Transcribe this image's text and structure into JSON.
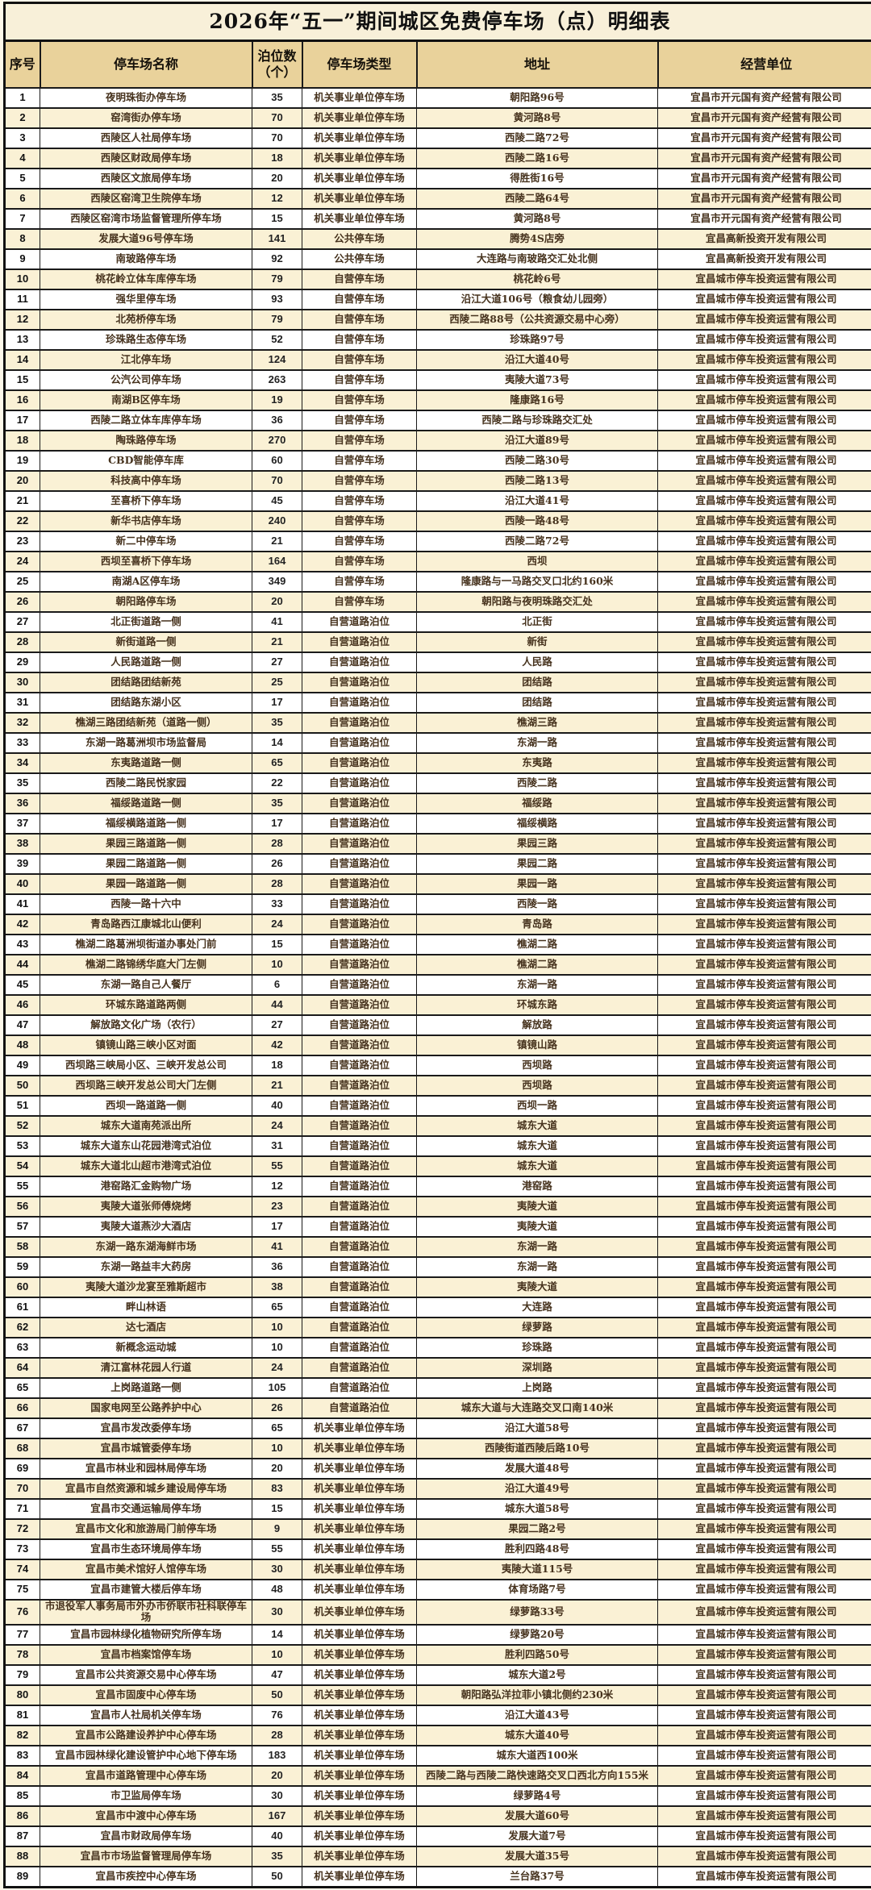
{
  "title": "2026年“五一”期间城区免费停车场（点）明细表",
  "table": {
    "headers": [
      "序号",
      "停车场名称",
      "泊位数（个）",
      "停车场类型",
      "地址",
      "经营单位"
    ],
    "rows": [
      [
        "1",
        "夜明珠街办停车场",
        "35",
        "机关事业单位停车场",
        "朝阳路96号",
        "宜昌市开元国有资产经营有限公司"
      ],
      [
        "2",
        "窑湾街办停车场",
        "70",
        "机关事业单位停车场",
        "黄河路8号",
        "宜昌市开元国有资产经营有限公司"
      ],
      [
        "3",
        "西陵区人社局停车场",
        "70",
        "机关事业单位停车场",
        "西陵二路72号",
        "宜昌市开元国有资产经营有限公司"
      ],
      [
        "4",
        "西陵区财政局停车场",
        "18",
        "机关事业单位停车场",
        "西陵二路16号",
        "宜昌市开元国有资产经营有限公司"
      ],
      [
        "5",
        "西陵区文旅局停车场",
        "20",
        "机关事业单位停车场",
        "得胜街16号",
        "宜昌市开元国有资产经营有限公司"
      ],
      [
        "6",
        "西陵区窑湾卫生院停车场",
        "12",
        "机关事业单位停车场",
        "西陵二路64号",
        "宜昌市开元国有资产经营有限公司"
      ],
      [
        "7",
        "西陵区窑湾市场监督管理所停车场",
        "15",
        "机关事业单位停车场",
        "黄河路8号",
        "宜昌市开元国有资产经营有限公司"
      ],
      [
        "8",
        "发展大道96号停车场",
        "141",
        "公共停车场",
        "腾势4S店旁",
        "宜昌高新投资开发有限公司"
      ],
      [
        "9",
        "南玻路停车场",
        "92",
        "公共停车场",
        "大连路与南玻路交汇处北侧",
        "宜昌高新投资开发有限公司"
      ],
      [
        "10",
        "桃花岭立体车库停车场",
        "79",
        "自营停车场",
        "桃花岭6号",
        "宜昌城市停车投资运营有限公司"
      ],
      [
        "11",
        "强华里停车场",
        "93",
        "自营停车场",
        "沿江大道106号（粮食幼儿园旁）",
        "宜昌城市停车投资运营有限公司"
      ],
      [
        "12",
        "北苑桥停车场",
        "79",
        "自营停车场",
        "西陵二路88号（公共资源交易中心旁）",
        "宜昌城市停车投资运营有限公司"
      ],
      [
        "13",
        "珍珠路生态停车场",
        "52",
        "自营停车场",
        "珍珠路97号",
        "宜昌城市停车投资运营有限公司"
      ],
      [
        "14",
        "江北停车场",
        "124",
        "自营停车场",
        "沿江大道40号",
        "宜昌城市停车投资运营有限公司"
      ],
      [
        "15",
        "公汽公司停车场",
        "263",
        "自营停车场",
        "夷陵大道73号",
        "宜昌城市停车投资运营有限公司"
      ],
      [
        "16",
        "南湖B区停车场",
        "19",
        "自营停车场",
        "隆康路16号",
        "宜昌城市停车投资运营有限公司"
      ],
      [
        "17",
        "西陵二路立体车库停车场",
        "36",
        "自营停车场",
        "西陵二路与珍珠路交汇处",
        "宜昌城市停车投资运营有限公司"
      ],
      [
        "18",
        "陶珠路停车场",
        "270",
        "自营停车场",
        "沿江大道89号",
        "宜昌城市停车投资运营有限公司"
      ],
      [
        "19",
        "CBD智能停车库",
        "60",
        "自营停车场",
        "西陵二路30号",
        "宜昌城市停车投资运营有限公司"
      ],
      [
        "20",
        "科技高中停车场",
        "70",
        "自营停车场",
        "西陵二路13号",
        "宜昌城市停车投资运营有限公司"
      ],
      [
        "21",
        "至喜桥下停车场",
        "45",
        "自营停车场",
        "沿江大道41号",
        "宜昌城市停车投资运营有限公司"
      ],
      [
        "22",
        "新华书店停车场",
        "240",
        "自营停车场",
        "西陵一路48号",
        "宜昌城市停车投资运营有限公司"
      ],
      [
        "23",
        "新二中停车场",
        "21",
        "自营停车场",
        "西陵二路72号",
        "宜昌城市停车投资运营有限公司"
      ],
      [
        "24",
        "西坝至喜桥下停车场",
        "164",
        "自营停车场",
        "西坝",
        "宜昌城市停车投资运营有限公司"
      ],
      [
        "25",
        "南湖A区停车场",
        "349",
        "自营停车场",
        "隆康路与一马路交叉口北约160米",
        "宜昌城市停车投资运营有限公司"
      ],
      [
        "26",
        "朝阳路停车场",
        "20",
        "自营停车场",
        "朝阳路与夜明珠路交汇处",
        "宜昌城市停车投资运营有限公司"
      ],
      [
        "27",
        "北正街道路一侧",
        "41",
        "自营道路泊位",
        "北正街",
        "宜昌城市停车投资运营有限公司"
      ],
      [
        "28",
        "新街道路一侧",
        "21",
        "自营道路泊位",
        "新街",
        "宜昌城市停车投资运营有限公司"
      ],
      [
        "29",
        "人民路道路一侧",
        "27",
        "自营道路泊位",
        "人民路",
        "宜昌城市停车投资运营有限公司"
      ],
      [
        "30",
        "团结路团结新苑",
        "25",
        "自营道路泊位",
        "团结路",
        "宜昌城市停车投资运营有限公司"
      ],
      [
        "31",
        "团结路东湖小区",
        "17",
        "自营道路泊位",
        "团结路",
        "宜昌城市停车投资运营有限公司"
      ],
      [
        "32",
        "樵湖三路团结新苑（道路一侧）",
        "35",
        "自营道路泊位",
        "樵湖三路",
        "宜昌城市停车投资运营有限公司"
      ],
      [
        "33",
        "东湖一路葛洲坝市场监督局",
        "14",
        "自营道路泊位",
        "东湖一路",
        "宜昌城市停车投资运营有限公司"
      ],
      [
        "34",
        "东夷路道路一侧",
        "65",
        "自营道路泊位",
        "东夷路",
        "宜昌城市停车投资运营有限公司"
      ],
      [
        "35",
        "西陵二路民悦家园",
        "22",
        "自营道路泊位",
        "西陵二路",
        "宜昌城市停车投资运营有限公司"
      ],
      [
        "36",
        "福绥路道路一侧",
        "35",
        "自营道路泊位",
        "福绥路",
        "宜昌城市停车投资运营有限公司"
      ],
      [
        "37",
        "福绥横路道路一侧",
        "17",
        "自营道路泊位",
        "福绥横路",
        "宜昌城市停车投资运营有限公司"
      ],
      [
        "38",
        "果园三路道路一侧",
        "28",
        "自营道路泊位",
        "果园三路",
        "宜昌城市停车投资运营有限公司"
      ],
      [
        "39",
        "果园二路道路一侧",
        "26",
        "自营道路泊位",
        "果园二路",
        "宜昌城市停车投资运营有限公司"
      ],
      [
        "40",
        "果园一路道路一侧",
        "28",
        "自营道路泊位",
        "果园一路",
        "宜昌城市停车投资运营有限公司"
      ],
      [
        "41",
        "西陵一路十六中",
        "33",
        "自营道路泊位",
        "西陵一路",
        "宜昌城市停车投资运营有限公司"
      ],
      [
        "42",
        "青岛路西江康城北山便利",
        "24",
        "自营道路泊位",
        "青岛路",
        "宜昌城市停车投资运营有限公司"
      ],
      [
        "43",
        "樵湖二路葛洲坝街道办事处门前",
        "15",
        "自营道路泊位",
        "樵湖二路",
        "宜昌城市停车投资运营有限公司"
      ],
      [
        "44",
        "樵湖二路锦绣华庭大门左侧",
        "10",
        "自营道路泊位",
        "樵湖二路",
        "宜昌城市停车投资运营有限公司"
      ],
      [
        "45",
        "东湖一路自己人餐厅",
        "6",
        "自营道路泊位",
        "东湖一路",
        "宜昌城市停车投资运营有限公司"
      ],
      [
        "46",
        "环城东路道路两侧",
        "44",
        "自营道路泊位",
        "环城东路",
        "宜昌城市停车投资运营有限公司"
      ],
      [
        "47",
        "解放路文化广场（农行）",
        "27",
        "自营道路泊位",
        "解放路",
        "宜昌城市停车投资运营有限公司"
      ],
      [
        "48",
        "镇镜山路三峡小区对面",
        "42",
        "自营道路泊位",
        "镇镜山路",
        "宜昌城市停车投资运营有限公司"
      ],
      [
        "49",
        "西坝路三峡局小区、三峡开发总公司",
        "18",
        "自营道路泊位",
        "西坝路",
        "宜昌城市停车投资运营有限公司"
      ],
      [
        "50",
        "西坝路三峡开发总公司大门左侧",
        "21",
        "自营道路泊位",
        "西坝路",
        "宜昌城市停车投资运营有限公司"
      ],
      [
        "51",
        "西坝一路道路一侧",
        "40",
        "自营道路泊位",
        "西坝一路",
        "宜昌城市停车投资运营有限公司"
      ],
      [
        "52",
        "城东大道南苑派出所",
        "24",
        "自营道路泊位",
        "城东大道",
        "宜昌城市停车投资运营有限公司"
      ],
      [
        "53",
        "城东大道东山花园港湾式泊位",
        "31",
        "自营道路泊位",
        "城东大道",
        "宜昌城市停车投资运营有限公司"
      ],
      [
        "54",
        "城东大道北山超市港湾式泊位",
        "55",
        "自营道路泊位",
        "城东大道",
        "宜昌城市停车投资运营有限公司"
      ],
      [
        "55",
        "港窑路汇金购物广场",
        "12",
        "自营道路泊位",
        "港窑路",
        "宜昌城市停车投资运营有限公司"
      ],
      [
        "56",
        "夷陵大道张师傅烧烤",
        "23",
        "自营道路泊位",
        "夷陵大道",
        "宜昌城市停车投资运营有限公司"
      ],
      [
        "57",
        "夷陵大道燕沙大酒店",
        "17",
        "自营道路泊位",
        "夷陵大道",
        "宜昌城市停车投资运营有限公司"
      ],
      [
        "58",
        "东湖一路东湖海鲜市场",
        "41",
        "自营道路泊位",
        "东湖一路",
        "宜昌城市停车投资运营有限公司"
      ],
      [
        "59",
        "东湖一路益丰大药房",
        "36",
        "自营道路泊位",
        "东湖一路",
        "宜昌城市停车投资运营有限公司"
      ],
      [
        "60",
        "夷陵大道沙龙宴至雅斯超市",
        "38",
        "自营道路泊位",
        "夷陵大道",
        "宜昌城市停车投资运营有限公司"
      ],
      [
        "61",
        "畔山林语",
        "65",
        "自营道路泊位",
        "大连路",
        "宜昌城市停车投资运营有限公司"
      ],
      [
        "62",
        "达七酒店",
        "10",
        "自营道路泊位",
        "绿萝路",
        "宜昌城市停车投资运营有限公司"
      ],
      [
        "63",
        "新概念运动城",
        "10",
        "自营道路泊位",
        "珍珠路",
        "宜昌城市停车投资运营有限公司"
      ],
      [
        "64",
        "清江富林花园人行道",
        "24",
        "自营道路泊位",
        "深圳路",
        "宜昌城市停车投资运营有限公司"
      ],
      [
        "65",
        "上岗路道路一侧",
        "105",
        "自营道路泊位",
        "上岗路",
        "宜昌城市停车投资运营有限公司"
      ],
      [
        "66",
        "国家电网至公路养护中心",
        "26",
        "自营道路泊位",
        "城东大道与大连路交叉口南140米",
        "宜昌城市停车投资运营有限公司"
      ],
      [
        "67",
        "宜昌市发改委停车场",
        "65",
        "机关事业单位停车场",
        "沿江大道58号",
        "宜昌城市停车投资运营有限公司"
      ],
      [
        "68",
        "宜昌市城管委停车场",
        "10",
        "机关事业单位停车场",
        "西陵街道西陵后路10号",
        "宜昌城市停车投资运营有限公司"
      ],
      [
        "69",
        "宜昌市林业和园林局停车场",
        "20",
        "机关事业单位停车场",
        "发展大道48号",
        "宜昌城市停车投资运营有限公司"
      ],
      [
        "70",
        "宜昌市自然资源和城乡建设局停车场",
        "83",
        "机关事业单位停车场",
        "沿江大道49号",
        "宜昌城市停车投资运营有限公司"
      ],
      [
        "71",
        "宜昌市交通运输局停车场",
        "15",
        "机关事业单位停车场",
        "城东大道58号",
        "宜昌城市停车投资运营有限公司"
      ],
      [
        "72",
        "宜昌市文化和旅游局门前停车场",
        "9",
        "机关事业单位停车场",
        "果园二路2号",
        "宜昌城市停车投资运营有限公司"
      ],
      [
        "73",
        "宜昌市生态环境局停车场",
        "55",
        "机关事业单位停车场",
        "胜利四路48号",
        "宜昌城市停车投资运营有限公司"
      ],
      [
        "74",
        "宜昌市美术馆好人馆停车场",
        "30",
        "机关事业单位停车场",
        "夷陵大道115号",
        "宜昌城市停车投资运营有限公司"
      ],
      [
        "75",
        "宜昌市建管大楼后停车场",
        "48",
        "机关事业单位停车场",
        "体育场路7号",
        "宜昌城市停车投资运营有限公司"
      ],
      [
        "76",
        "市退役军人事务局市外办市侨联市社科联停车场",
        "30",
        "机关事业单位停车场",
        "绿萝路33号",
        "宜昌城市停车投资运营有限公司"
      ],
      [
        "77",
        "宜昌市园林绿化植物研究所停车场",
        "14",
        "机关事业单位停车场",
        "绿萝路20号",
        "宜昌城市停车投资运营有限公司"
      ],
      [
        "78",
        "宜昌市档案馆停车场",
        "10",
        "机关事业单位停车场",
        "胜利四路50号",
        "宜昌城市停车投资运营有限公司"
      ],
      [
        "79",
        "宜昌市公共资源交易中心停车场",
        "47",
        "机关事业单位停车场",
        "城东大道2号",
        "宜昌城市停车投资运营有限公司"
      ],
      [
        "80",
        "宜昌市固废中心停车场",
        "50",
        "机关事业单位停车场",
        "朝阳路弘洋拉菲小镇北侧约230米",
        "宜昌城市停车投资运营有限公司"
      ],
      [
        "81",
        "宜昌市人社局机关停车场",
        "76",
        "机关事业单位停车场",
        "沿江大道43号",
        "宜昌城市停车投资运营有限公司"
      ],
      [
        "82",
        "宜昌市公路建设养护中心停车场",
        "28",
        "机关事业单位停车场",
        "城东大道40号",
        "宜昌城市停车投资运营有限公司"
      ],
      [
        "83",
        "宜昌市园林绿化建设管护中心地下停车场",
        "183",
        "机关事业单位停车场",
        "城东大道西100米",
        "宜昌城市停车投资运营有限公司"
      ],
      [
        "84",
        "宜昌市道路管理中心停车场",
        "20",
        "机关事业单位停车场",
        "西陵二路与西陵二路快速路交叉口西北方向155米",
        "宜昌城市停车投资运营有限公司"
      ],
      [
        "85",
        "市卫监局停车场",
        "30",
        "机关事业单位停车场",
        "绿萝路4号",
        "宜昌城市停车投资运营有限公司"
      ],
      [
        "86",
        "宜昌市中渡中心停车场",
        "167",
        "机关事业单位停车场",
        "发展大道60号",
        "宜昌城市停车投资运营有限公司"
      ],
      [
        "87",
        "宜昌市财政局停车场",
        "40",
        "机关事业单位停车场",
        "发展大道7号",
        "宜昌城市停车投资运营有限公司"
      ],
      [
        "88",
        "宜昌市市场监督管理局停车场",
        "35",
        "机关事业单位停车场",
        "发展大道35号",
        "宜昌城市停车投资运营有限公司"
      ],
      [
        "89",
        "宜昌市疾控中心停车场",
        "50",
        "机关事业单位停车场",
        "兰台路37号",
        "宜昌城市停车投资运营有限公司"
      ]
    ]
  },
  "colors": {
    "header_bg": "#e9d29b",
    "row_alt_bg": "#faf1d5",
    "row_bg": "#ffffff",
    "title_bg": "#f8f0d9",
    "border": "#1a1a1a",
    "text": "#46321d"
  }
}
